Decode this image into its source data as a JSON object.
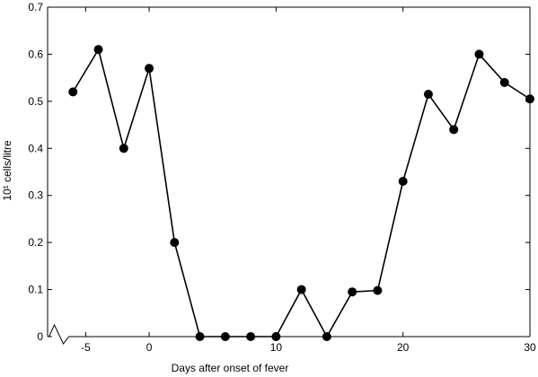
{
  "chart_data": {
    "type": "line",
    "xlabel": "Days after onset of fever",
    "ylabel": "10¹ cells/litre",
    "xlim": [
      -8,
      30
    ],
    "ylim": [
      0,
      0.7
    ],
    "x_ticks": [
      -5,
      0,
      10,
      20,
      30
    ],
    "x_tick_labels": [
      "-5",
      "0",
      "10",
      "20",
      "30"
    ],
    "y_ticks": [
      0,
      0.1,
      0.2,
      0.3,
      0.4,
      0.5,
      0.6,
      0.7
    ],
    "y_tick_labels": [
      "0",
      "0.1",
      "0.2",
      "0.3",
      "0.4",
      "0.5",
      "0.6",
      "0.7"
    ],
    "axis_break": "x-axis, left of -5",
    "grid": false,
    "line_color": "#000000",
    "marker_color": "#000000",
    "series": [
      {
        "x": [
          -6,
          -4,
          -2,
          0,
          2,
          4,
          6,
          8,
          10,
          12,
          14,
          16,
          18,
          20,
          22,
          24,
          26,
          28,
          30
        ],
        "y": [
          0.52,
          0.61,
          0.4,
          0.57,
          0.2,
          0.0,
          0.0,
          0.0,
          0.0,
          0.1,
          0.0,
          0.095,
          0.098,
          0.33,
          0.515,
          0.44,
          0.6,
          0.54,
          0.505
        ]
      }
    ]
  }
}
